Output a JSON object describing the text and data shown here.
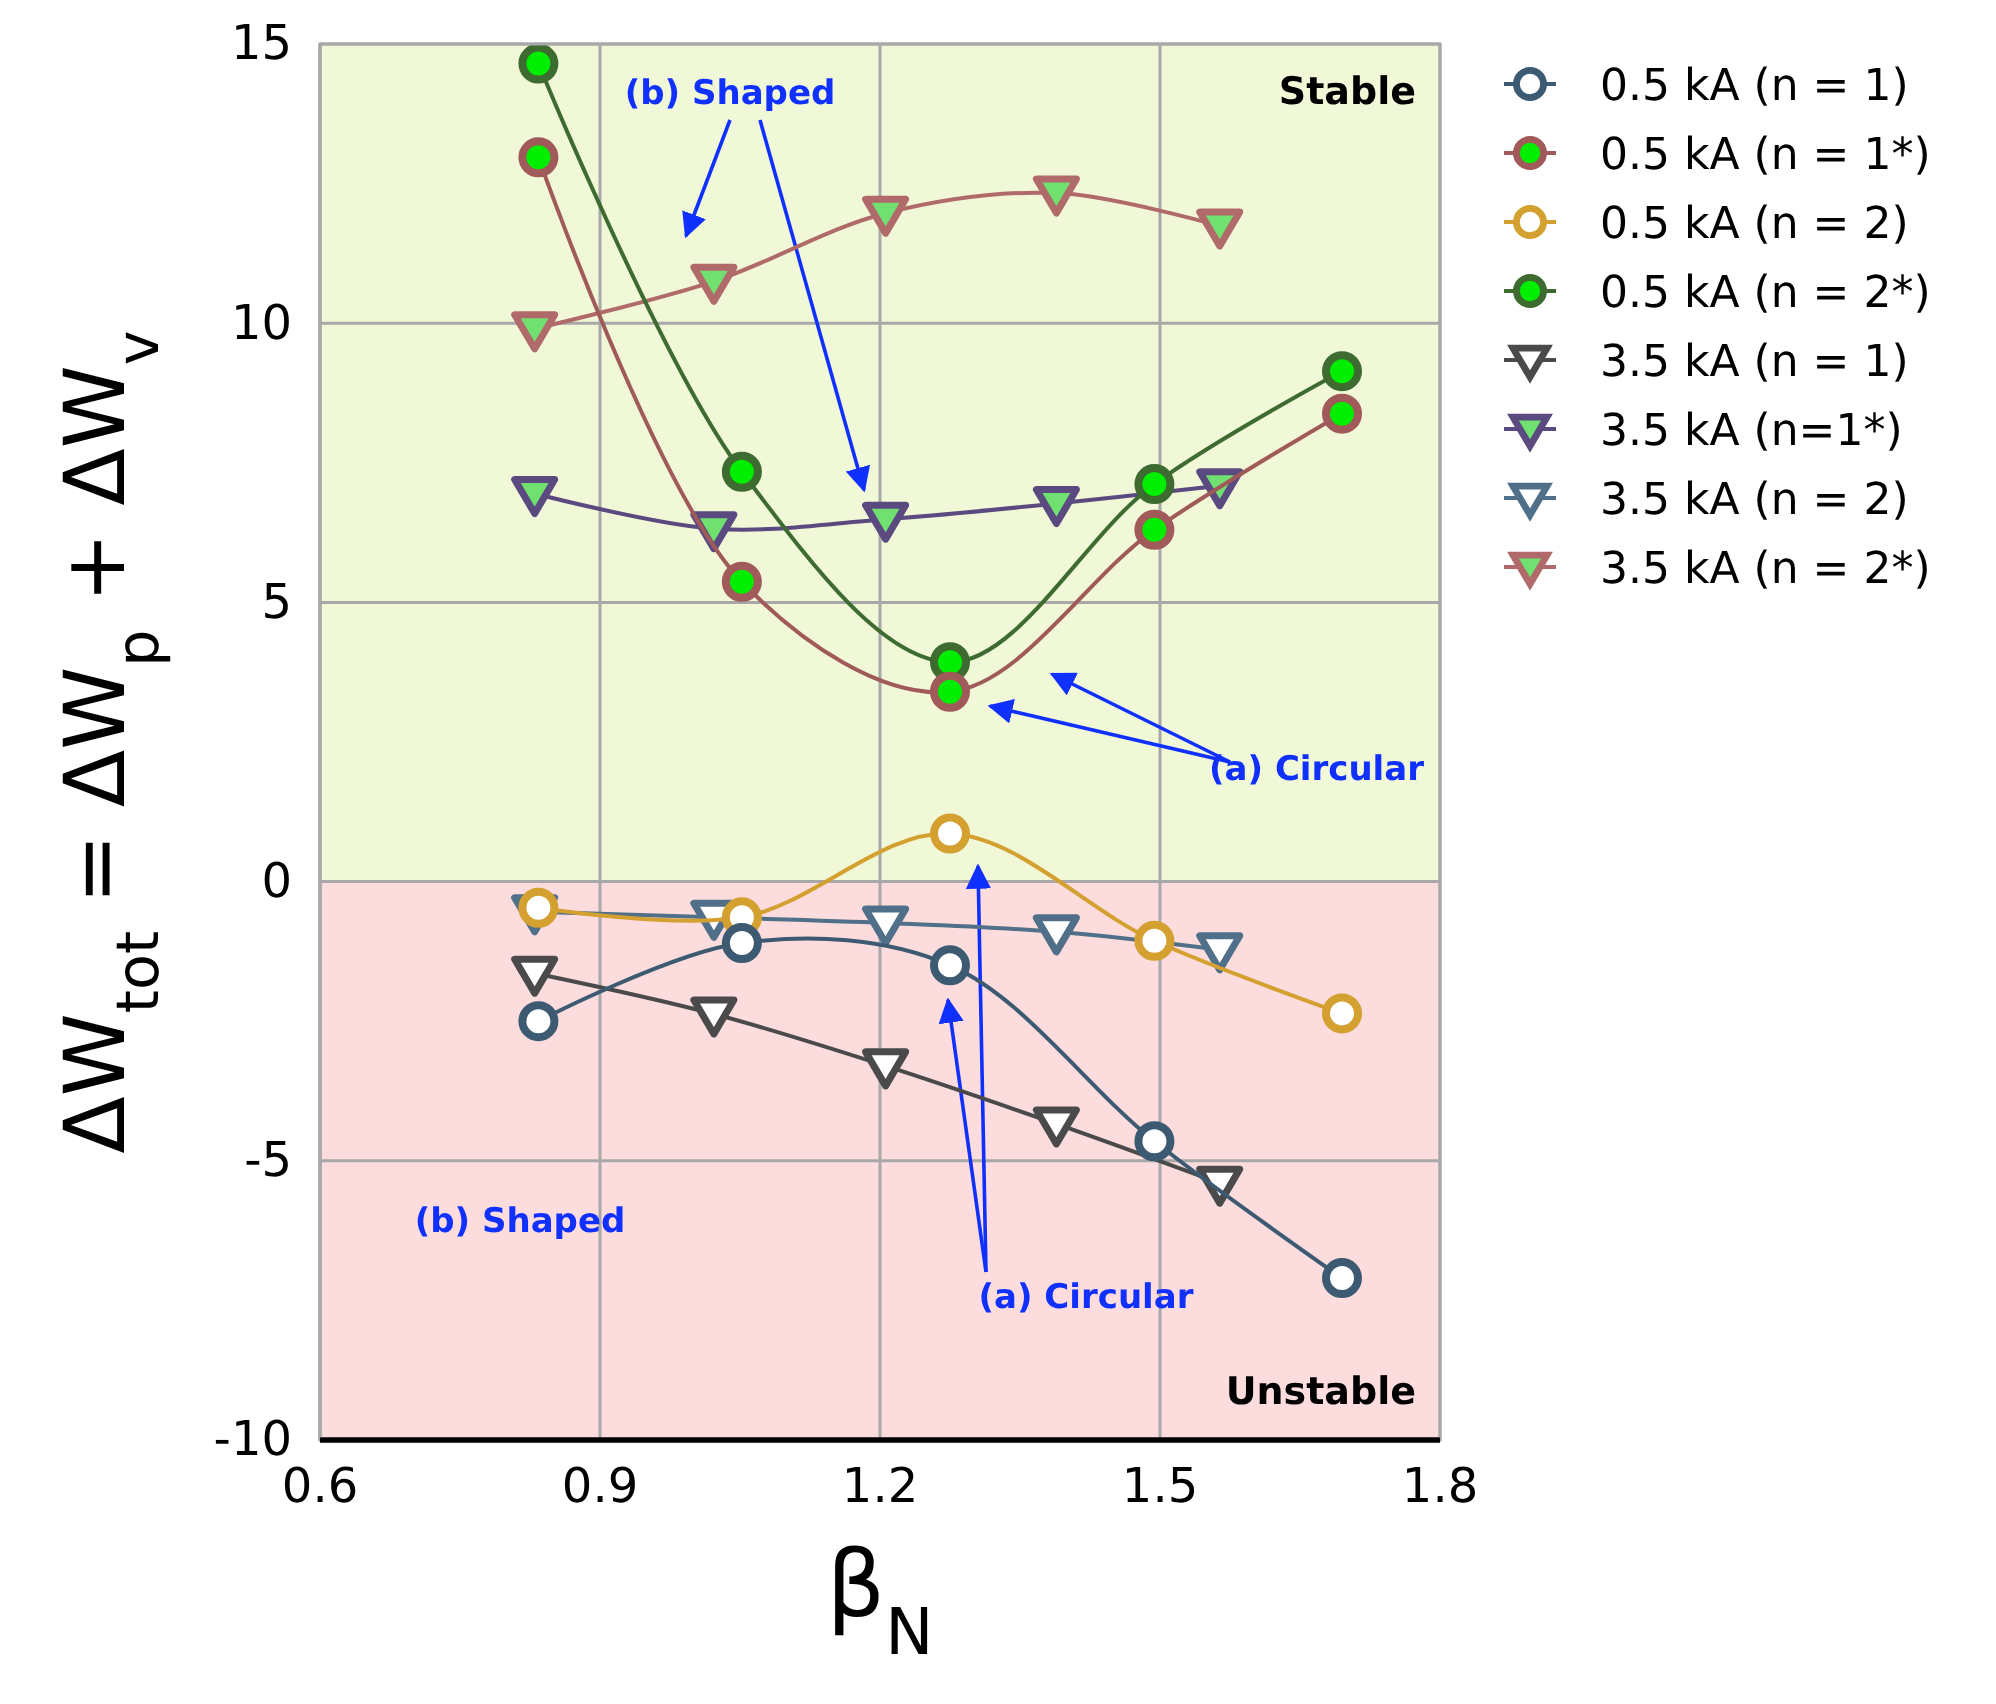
{
  "chart_data": {
    "type": "line",
    "xlabel": "β$_{N}$",
    "ylabel": "ΔW$_{tot}$ = ΔW$_{p}$ + ΔW$_{v}$",
    "xlim": [
      0.6,
      1.8
    ],
    "xticks": [
      0.6,
      0.9,
      1.2,
      1.5,
      1.8
    ],
    "ylim": [
      -10,
      15
    ],
    "yticks": [
      -10,
      -5,
      0,
      5,
      10,
      15
    ],
    "grid": true,
    "legend": "right",
    "bands": [
      {
        "axis": "y",
        "from": 0,
        "to": 15,
        "label": "Stable",
        "color": "#f0f8d8"
      },
      {
        "axis": "y",
        "from": -10,
        "to": 0,
        "label": "Unstable",
        "color": "#fcdcdc"
      }
    ],
    "annotations": [
      "(b) Shaped",
      "(a) Circular",
      "(b) Shaped",
      "(a) Circular"
    ],
    "series": [
      {
        "name": "0.5 kA (n = 1)",
        "color": "#3d5a73",
        "marker": "circle",
        "x": [
          0.834,
          1.052,
          1.275,
          1.494,
          1.695
        ],
        "values": [
          -2.5,
          -1.1,
          -1.5,
          -4.65,
          -7.1
        ]
      },
      {
        "name": "0.5 kA (n = 1*)",
        "color": "#a05a5a",
        "marker": "circle",
        "colors": [
          "#00ee00",
          "#00ee00",
          "#00ee00",
          "#00ee00",
          "#00ee00"
        ],
        "x": [
          0.834,
          1.052,
          1.275,
          1.494,
          1.695
        ],
        "values": [
          12.97,
          5.37,
          3.4,
          6.3,
          8.38
        ]
      },
      {
        "name": "0.5 kA (n = 2)",
        "color": "#d4a030",
        "marker": "circle",
        "x": [
          0.834,
          1.052,
          1.275,
          1.494,
          1.695
        ],
        "values": [
          -0.47,
          -0.64,
          0.86,
          -1.06,
          -2.36
        ]
      },
      {
        "name": "0.5 kA (n = 2*)",
        "color": "#3d6b30",
        "marker": "circle",
        "colors": [
          "#00ee00",
          "#00ee00",
          "#00ee00",
          "#00ee00",
          "#00ee00"
        ],
        "x": [
          0.834,
          1.052,
          1.275,
          1.494,
          1.695
        ],
        "values": [
          14.65,
          7.34,
          3.93,
          7.12,
          9.14
        ]
      },
      {
        "name": "3.5 kA (n = 1)",
        "color": "#4a4a4a",
        "marker": "triangle",
        "x": [
          0.83,
          1.022,
          1.206,
          1.389,
          1.564
        ],
        "values": [
          -1.64,
          -2.37,
          -3.3,
          -4.34,
          -5.4
        ]
      },
      {
        "name": "3.5 kA (n=1*)",
        "color": "#5a4a80",
        "marker": "triangle",
        "colors": [
          "#70e070",
          "#70e070",
          "#70e070",
          "#70e070",
          "#70e070"
        ],
        "x": [
          0.83,
          1.022,
          1.206,
          1.389,
          1.564
        ],
        "values": [
          6.95,
          6.32,
          6.49,
          6.77,
          7.09
        ]
      },
      {
        "name": "3.5 kA (n = 2)",
        "color": "#50708a",
        "marker": "triangle",
        "x": [
          0.83,
          1.022,
          1.206,
          1.389,
          1.564
        ],
        "values": [
          -0.54,
          -0.64,
          -0.74,
          -0.9,
          -1.22
        ]
      },
      {
        "name": "3.5 kA (n = 2*)",
        "color": "#b06a6a",
        "marker": "triangle",
        "colors": [
          "#70e070",
          "#70e070",
          "#70e070",
          "#70e070",
          "#70e070"
        ],
        "x": [
          0.83,
          1.022,
          1.206,
          1.389,
          1.564
        ],
        "values": [
          9.9,
          10.75,
          11.97,
          12.33,
          11.74
        ]
      }
    ]
  }
}
